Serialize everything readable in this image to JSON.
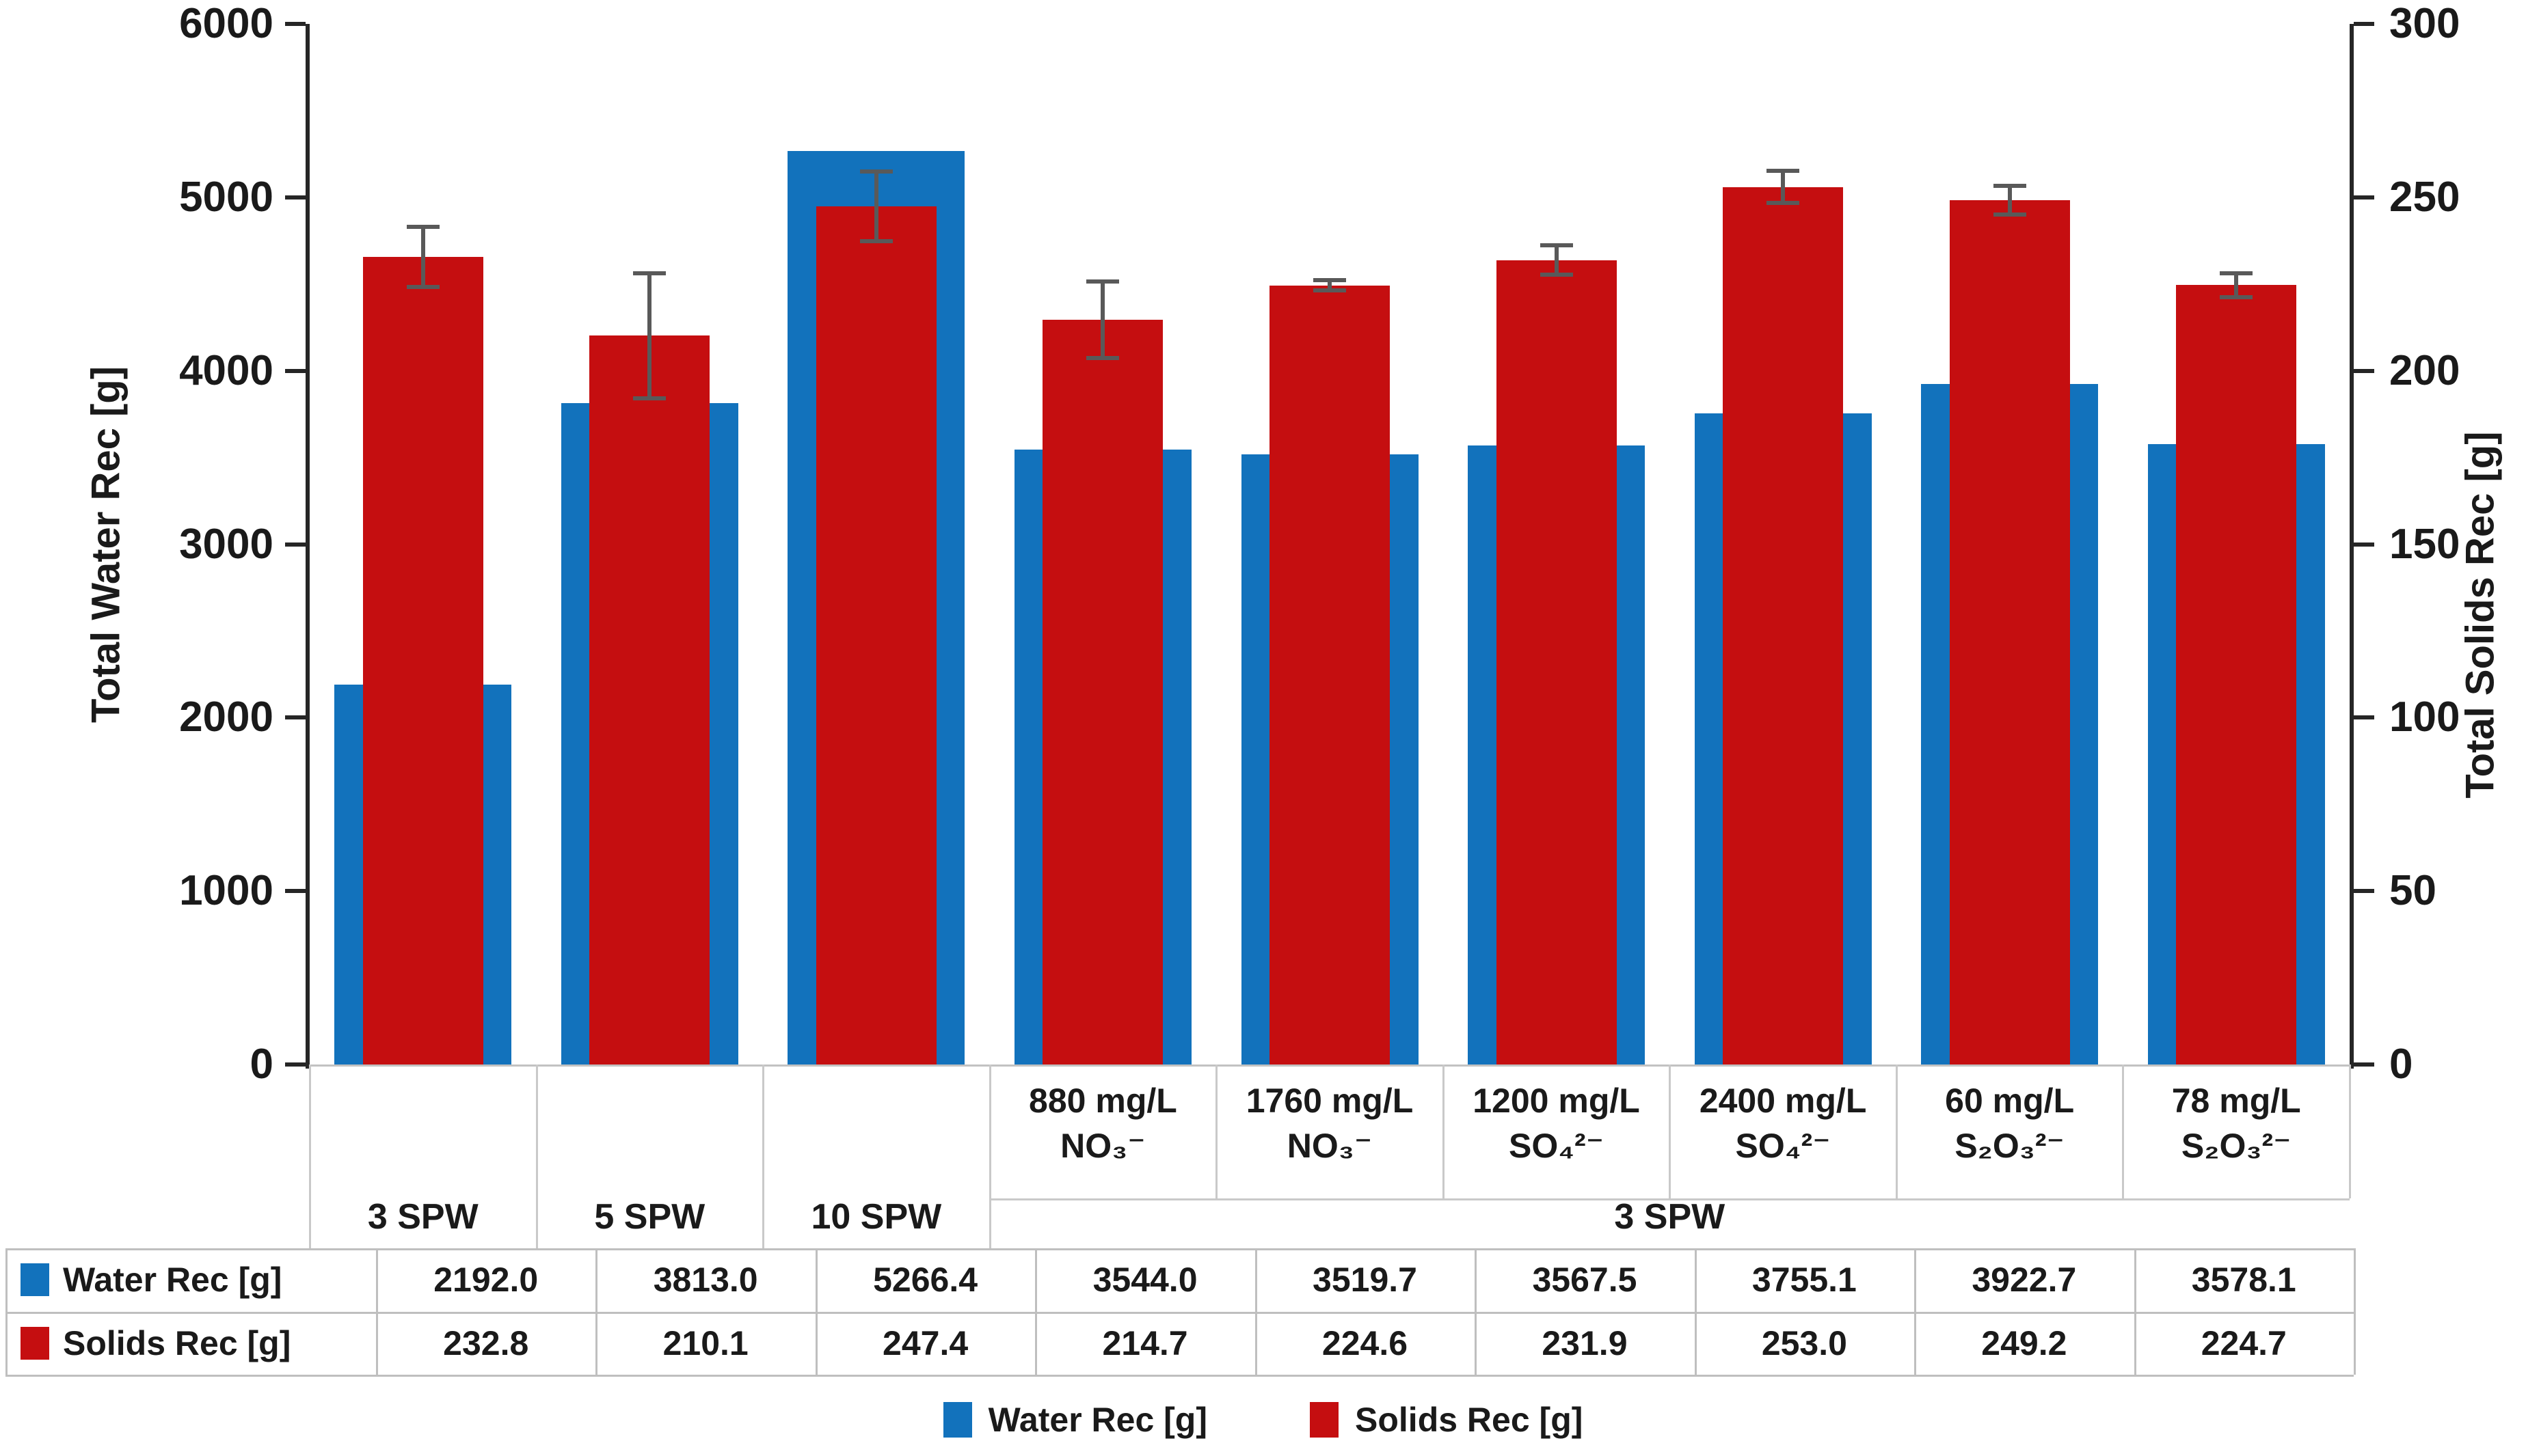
{
  "chart_data": {
    "type": "bar",
    "dual_axis": true,
    "grid": false,
    "left_axis": {
      "title": "Total Water Rec [g]",
      "min": 0,
      "max": 6000,
      "tick_step": 1000,
      "ticks": [
        "6000",
        "5000",
        "4000",
        "3000",
        "2000",
        "1000",
        "0"
      ]
    },
    "right_axis": {
      "title": "Total Solids Rec [g]",
      "min": 0,
      "max": 300,
      "tick_step": 50,
      "ticks": [
        "300",
        "250",
        "200",
        "150",
        "100",
        "50",
        "0"
      ]
    },
    "categories": [
      {
        "ion_line1": "",
        "ion_line2": "",
        "group": "3 SPW"
      },
      {
        "ion_line1": "",
        "ion_line2": "",
        "group": "5 SPW"
      },
      {
        "ion_line1": "",
        "ion_line2": "",
        "group": "10 SPW"
      },
      {
        "ion_line1": "880 mg/L",
        "ion_line2": "NO₃⁻",
        "group": "3 SPW"
      },
      {
        "ion_line1": "1760 mg/L",
        "ion_line2": "NO₃⁻",
        "group": "3 SPW"
      },
      {
        "ion_line1": "1200 mg/L",
        "ion_line2": "SO₄²⁻",
        "group": "3 SPW"
      },
      {
        "ion_line1": "2400 mg/L",
        "ion_line2": "SO₄²⁻",
        "group": "3 SPW"
      },
      {
        "ion_line1": "60 mg/L",
        "ion_line2": "S₂O₃²⁻",
        "group": "3 SPW"
      },
      {
        "ion_line1": "78 mg/L",
        "ion_line2": "S₂O₃²⁻",
        "group": "3 SPW"
      }
    ],
    "group_spans": [
      {
        "label": "3 SPW",
        "start": 0,
        "count": 1
      },
      {
        "label": "5 SPW",
        "start": 1,
        "count": 1
      },
      {
        "label": "10 SPW",
        "start": 2,
        "count": 1
      },
      {
        "label": "3 SPW",
        "start": 3,
        "count": 6
      }
    ],
    "series": [
      {
        "name": "Water Rec [g]",
        "axis": "left",
        "color": "#1272BC",
        "values": [
          2192.0,
          3813.0,
          5266.4,
          3544.0,
          3519.7,
          3567.5,
          3755.1,
          3922.7,
          3578.1
        ]
      },
      {
        "name": "Solids Rec [g]",
        "axis": "right",
        "color": "#C50E10",
        "values": [
          232.8,
          210.1,
          247.4,
          214.7,
          224.6,
          231.9,
          253.0,
          249.2,
          224.7
        ],
        "errors": [
          8.7,
          18.0,
          10.0,
          11.0,
          1.5,
          4.2,
          4.6,
          4.1,
          3.5
        ]
      }
    ],
    "error_bar_color": "#595959"
  },
  "table": {
    "rows": [
      {
        "label": "Water Rec [g]",
        "swatch": "#1272BC",
        "values": [
          "2192.0",
          "3813.0",
          "5266.4",
          "3544.0",
          "3519.7",
          "3567.5",
          "3755.1",
          "3922.7",
          "3578.1"
        ]
      },
      {
        "label": "Solids Rec [g]",
        "swatch": "#C50E10",
        "values": [
          "232.8",
          "210.1",
          "247.4",
          "214.7",
          "224.6",
          "231.9",
          "253.0",
          "249.2",
          "224.7"
        ]
      }
    ]
  },
  "legend": {
    "items": [
      {
        "label": "Water Rec [g]",
        "color": "#1272BC"
      },
      {
        "label": "Solids Rec [g]",
        "color": "#C50E10"
      }
    ]
  }
}
